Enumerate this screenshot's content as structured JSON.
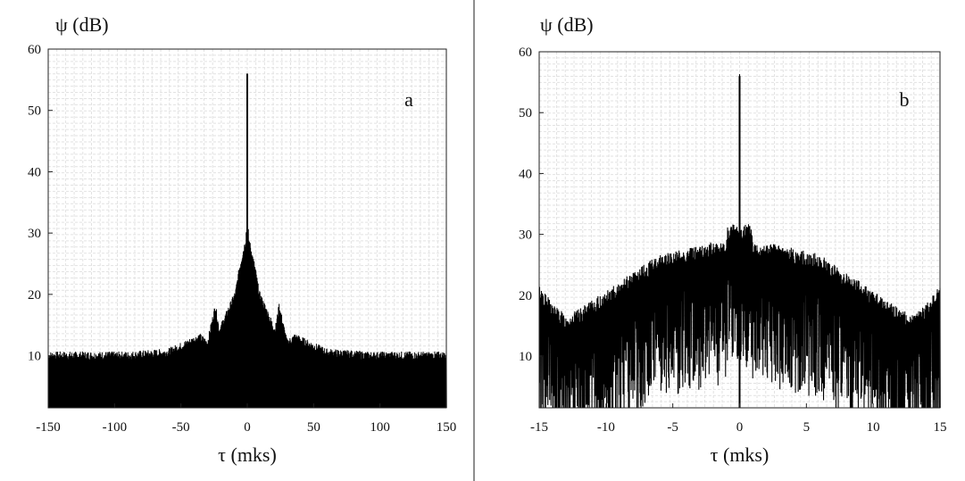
{
  "chart_data": [
    {
      "type": "line",
      "panel_label": "a",
      "title": "",
      "xlabel": "τ (mks)",
      "ylabel": "ψ (dB)",
      "xlim": [
        -150,
        150
      ],
      "ylim": [
        1.5,
        60
      ],
      "xticks": [
        "-150",
        "-100",
        "-50",
        "0",
        "50",
        "100",
        "150"
      ],
      "yticks": [
        "10",
        "20",
        "30",
        "40",
        "50",
        "60"
      ],
      "grid": true,
      "series": [
        {
          "x": [
            -150,
            -120,
            -90,
            -60,
            -45,
            -36,
            -30,
            -27,
            -24,
            -21,
            -15,
            -9,
            -6,
            -3,
            -1,
            0,
            1,
            3,
            6,
            9,
            15,
            21,
            24,
            27,
            30,
            36,
            45,
            60,
            90,
            120,
            150
          ],
          "values": [
            10,
            10,
            10,
            10.5,
            12,
            13,
            12,
            15,
            18,
            14,
            17,
            20,
            24,
            27,
            29,
            56,
            29,
            27,
            24,
            20,
            17,
            14,
            18,
            15,
            12,
            13,
            12,
            10.5,
            10,
            10,
            10
          ]
        }
      ]
    },
    {
      "type": "line",
      "panel_label": "b",
      "title": "",
      "xlabel": "τ (mks)",
      "ylabel": "ψ (dB)",
      "xlim": [
        -15,
        15
      ],
      "ylim": [
        1.5,
        60
      ],
      "xticks": [
        "-15",
        "-10",
        "-5",
        "0",
        "5",
        "10",
        "15"
      ],
      "yticks": [
        "10",
        "20",
        "30",
        "40",
        "50",
        "60"
      ],
      "grid": true,
      "series": [
        {
          "x": [
            -15,
            -14,
            -13,
            -12,
            -10,
            -8,
            -6,
            -4,
            -2,
            -1,
            0,
            1,
            2,
            4,
            6,
            8,
            10,
            12,
            13,
            14,
            15
          ],
          "values": [
            20,
            17,
            15,
            16,
            19,
            22,
            25,
            26,
            27,
            27,
            56,
            27,
            27,
            26,
            25,
            22,
            19,
            16,
            15,
            17,
            20
          ]
        }
      ]
    }
  ]
}
